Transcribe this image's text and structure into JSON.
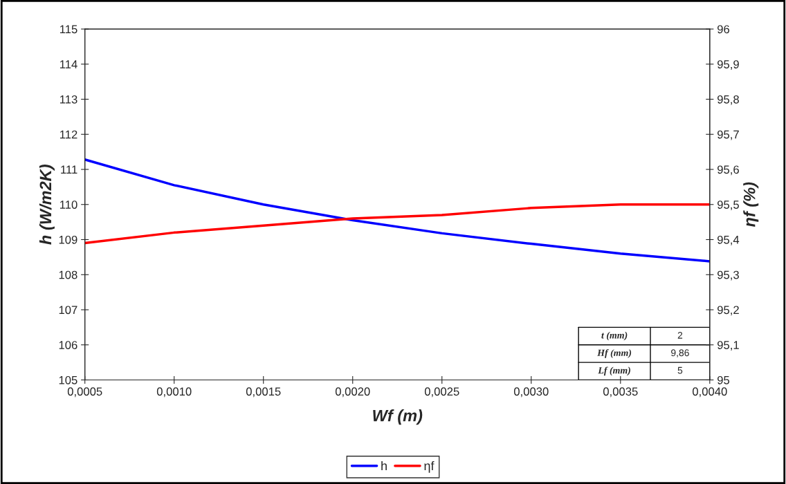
{
  "chart_data": {
    "type": "line",
    "xlabel": "Wf (m)",
    "ylabel": "h (W/m2K)",
    "y2label": "ηf (%)",
    "x": [
      0.0005,
      0.001,
      0.0015,
      0.002,
      0.0025,
      0.003,
      0.0035,
      0.004
    ],
    "series": [
      {
        "name": "h",
        "color": "#0000ff",
        "values": [
          111.28,
          110.55,
          110.0,
          109.55,
          109.18,
          108.88,
          108.6,
          108.38
        ]
      },
      {
        "name": "ηf",
        "color": "#ff0000",
        "axis": "y2",
        "values": [
          95.39,
          95.42,
          95.44,
          95.46,
          95.47,
          95.49,
          95.5,
          95.5
        ]
      }
    ],
    "xlim": [
      0.0005,
      0.004
    ],
    "xticks": [
      {
        "value": 0.0005,
        "label": "0,0005"
      },
      {
        "value": 0.001,
        "label": "0,0010"
      },
      {
        "value": 0.0015,
        "label": "0,0015"
      },
      {
        "value": 0.002,
        "label": "0,0020"
      },
      {
        "value": 0.0025,
        "label": "0,0025"
      },
      {
        "value": 0.003,
        "label": "0,0030"
      },
      {
        "value": 0.0035,
        "label": "0,0035"
      },
      {
        "value": 0.004,
        "label": "0,0040"
      }
    ],
    "ylim": [
      105,
      115
    ],
    "yticks": [
      105,
      106,
      107,
      108,
      109,
      110,
      111,
      112,
      113,
      114,
      115
    ],
    "y2lim": [
      95,
      96
    ],
    "y2ticks": [
      95,
      {
        "value": 95.1,
        "label": "95,1"
      },
      {
        "value": 95.2,
        "label": "95,2"
      },
      {
        "value": 95.3,
        "label": "95,3"
      },
      {
        "value": 95.4,
        "label": "95,4"
      },
      {
        "value": 95.5,
        "label": "95,5"
      },
      {
        "value": 95.6,
        "label": "95,6"
      },
      {
        "value": 95.7,
        "label": "95,7"
      },
      {
        "value": 95.8,
        "label": "95,8"
      },
      {
        "value": 95.9,
        "label": "95,9"
      },
      96
    ],
    "annotations": [
      "t (mm)",
      "2",
      "Hf (mm)",
      "9,86",
      "Lf (mm)",
      "5"
    ],
    "legend": "bottom",
    "grid": false,
    "marker": "none",
    "line_style": "solid"
  }
}
